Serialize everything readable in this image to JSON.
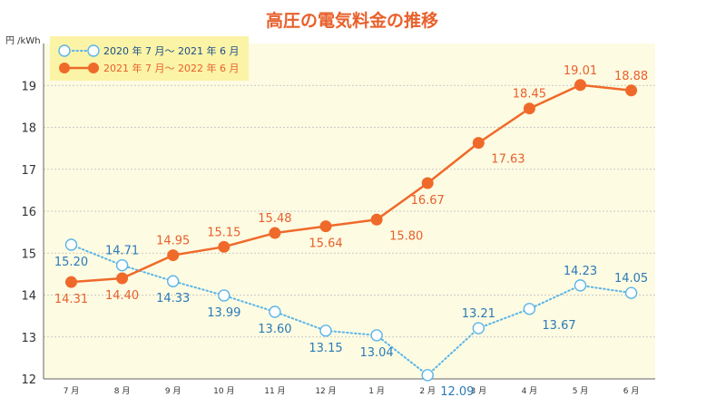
{
  "chart_data": {
    "type": "line",
    "title": "高圧の電気料金の推移",
    "unit_label": "円 /kWh",
    "categories": [
      "7 月",
      "8 月",
      "9 月",
      "10 月",
      "11 月",
      "12 月",
      "1 月",
      "2 月",
      "3 月",
      "4 月",
      "5 月",
      "6 月"
    ],
    "ylim": [
      12,
      20
    ],
    "yticks": [
      12,
      13,
      14,
      15,
      16,
      17,
      18,
      19
    ],
    "grid": true,
    "legend_position": "top-left",
    "series": [
      {
        "name": "2020 年 7 月～ 2021 年 6 月",
        "values": [
          15.2,
          14.71,
          14.33,
          13.99,
          13.6,
          13.15,
          13.04,
          12.09,
          13.21,
          13.67,
          14.23,
          14.05
        ],
        "labels": [
          "15.20",
          "14.71",
          "14.33",
          "13.99",
          "13.60",
          "13.15",
          "13.04",
          "12.09",
          "13.21",
          "13.67",
          "14.23",
          "14.05"
        ],
        "color": "#5bb5e8",
        "label_color": "#2a7ab8",
        "style": "dotted-hollow"
      },
      {
        "name": "2021 年 7 月～ 2022 年 6 月",
        "values": [
          14.31,
          14.4,
          14.95,
          15.15,
          15.48,
          15.64,
          15.8,
          16.67,
          17.63,
          18.45,
          19.01,
          18.88
        ],
        "labels": [
          "14.31",
          "14.40",
          "14.95",
          "15.15",
          "15.48",
          "15.64",
          "15.80",
          "16.67",
          "17.63",
          "18.45",
          "19.01",
          "18.88"
        ],
        "color": "#ef6a2a",
        "label_color": "#e8602c",
        "style": "solid-filled"
      }
    ]
  },
  "colors": {
    "plot_background": "#fdfbe2",
    "legend_background": "#fbf3a6",
    "grid": "#bbbbbb",
    "axis": "#666666"
  }
}
